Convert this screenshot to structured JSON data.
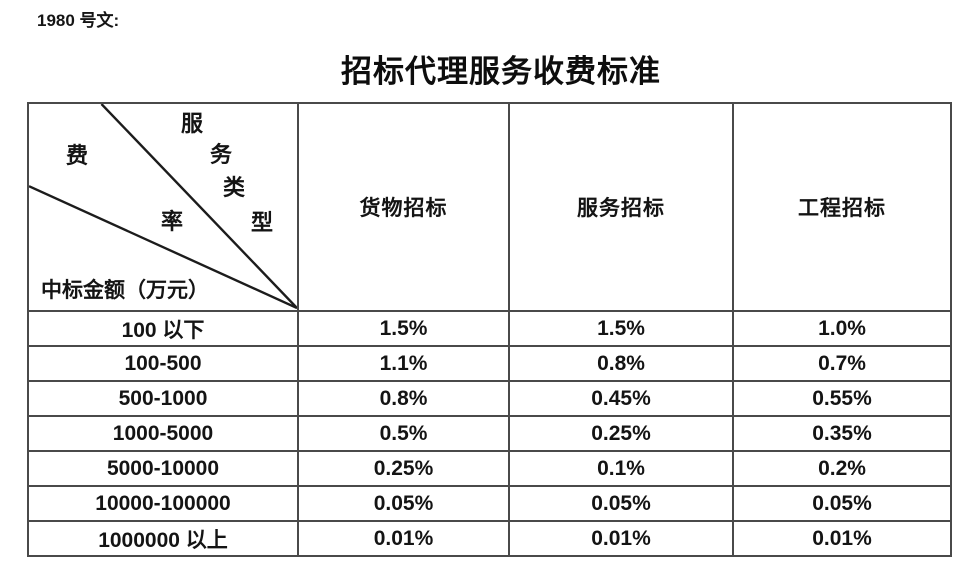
{
  "page": {
    "doc_ref": "1980 号文:",
    "title": "招标代理服务收费标准"
  },
  "table": {
    "corner": {
      "service_type_chars": [
        "服",
        "务",
        "类",
        "型"
      ],
      "rate_chars": [
        "费",
        "率"
      ],
      "row_axis_label": "中标金额（万元）"
    },
    "columns": [
      "货物招标",
      "服务招标",
      "工程招标"
    ],
    "rows": [
      {
        "label": "100 以下",
        "values": [
          "1.5%",
          "1.5%",
          "1.0%"
        ]
      },
      {
        "label": "100-500",
        "values": [
          "1.1%",
          "0.8%",
          "0.7%"
        ]
      },
      {
        "label": "500-1000",
        "values": [
          "0.8%",
          "0.45%",
          "0.55%"
        ]
      },
      {
        "label": "1000-5000",
        "values": [
          "0.5%",
          "0.25%",
          "0.35%"
        ]
      },
      {
        "label": "5000-10000",
        "values": [
          "0.25%",
          "0.1%",
          "0.2%"
        ]
      },
      {
        "label": "10000-100000",
        "values": [
          "0.05%",
          "0.05%",
          "0.05%"
        ]
      },
      {
        "label": "1000000 以上",
        "values": [
          "0.01%",
          "0.01%",
          "0.01%"
        ]
      }
    ]
  }
}
